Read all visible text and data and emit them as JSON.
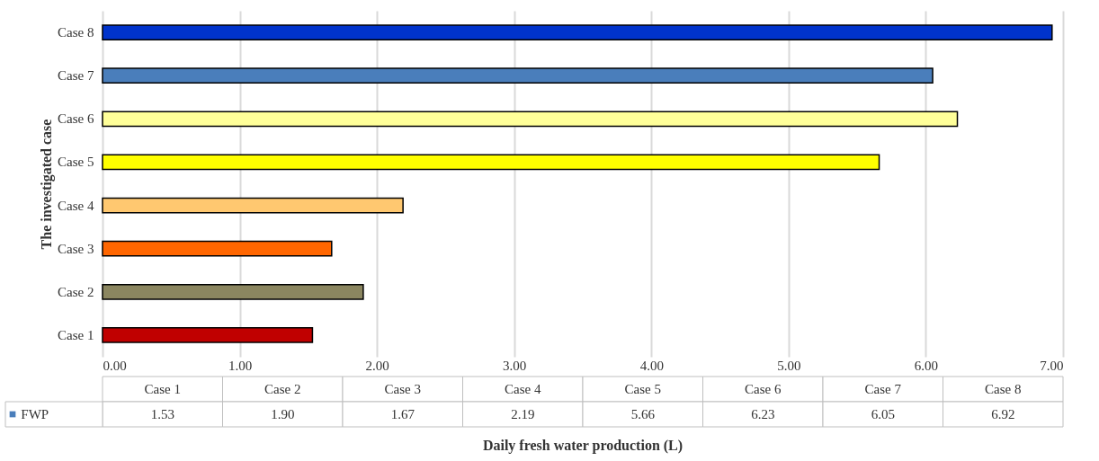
{
  "chart_data": {
    "type": "bar",
    "orientation": "horizontal",
    "ylabel": "The investigated case",
    "xlabel": "Daily fresh water production (L)",
    "categories": [
      "Case 8",
      "Case 7",
      "Case 6",
      "Case 5",
      "Case 4",
      "Case 3",
      "Case 2",
      "Case 1"
    ],
    "series": [
      {
        "name": "FWP",
        "values": [
          6.92,
          6.05,
          6.23,
          5.66,
          2.19,
          1.67,
          1.9,
          1.53
        ]
      }
    ],
    "colors": [
      "#0033cc",
      "#4a7ebb",
      "#ffff99",
      "#ffff00",
      "#ffc870",
      "#ff6600",
      "#8b8660",
      "#c00000"
    ],
    "value_labels": [
      "6.92",
      "6.05",
      "6.23",
      "5.66",
      "2.19",
      "1.67",
      "1.90",
      "1.53"
    ],
    "xlim": [
      0,
      7
    ],
    "xticks": [
      {
        "value": 0,
        "label": "0.00"
      },
      {
        "value": 1,
        "label": "1.00"
      },
      {
        "value": 2,
        "label": "2.00"
      },
      {
        "value": 3,
        "label": "3.00"
      },
      {
        "value": 4,
        "label": "4.00"
      },
      {
        "value": 5,
        "label": "5.00"
      },
      {
        "value": 6,
        "label": "6.00"
      },
      {
        "value": 7,
        "label": "7.00"
      }
    ],
    "grid": "x",
    "legend": "bottom"
  }
}
